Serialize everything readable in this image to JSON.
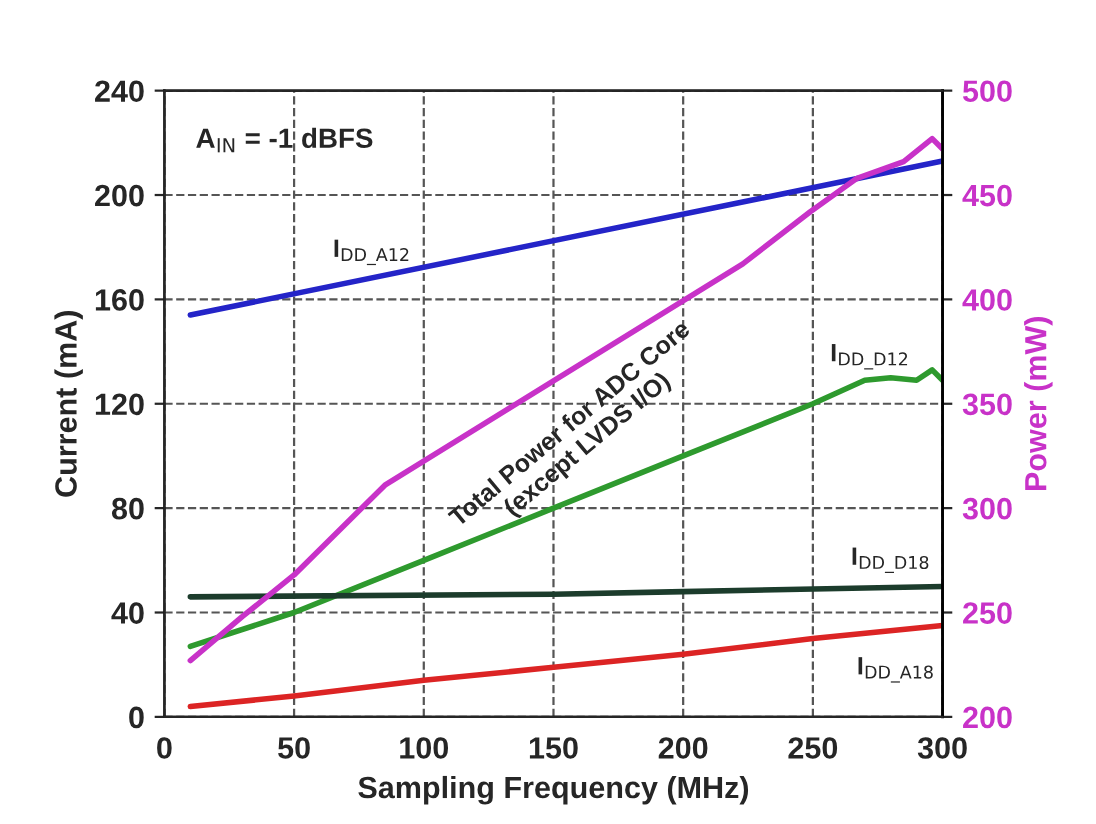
{
  "chart_data": {
    "type": "line",
    "xlabel": "Sampling Frequency (MHz)",
    "ylabel": "Current (mA)",
    "y2label": "Power (mW)",
    "annotations": [
      "A$_{IN}$ = -1 dBFS"
    ],
    "xlim": [
      0,
      300
    ],
    "xticks": [
      0,
      50,
      100,
      150,
      200,
      250,
      300
    ],
    "ylim": [
      0,
      240
    ],
    "yticks": [
      0,
      40,
      80,
      120,
      160,
      200,
      240
    ],
    "y2lim": [
      200,
      500
    ],
    "y2ticks": [
      200,
      250,
      300,
      350,
      400,
      450,
      500
    ],
    "grid": true,
    "legend": false,
    "line_style": "solid",
    "marker": "none",
    "series": [
      {
        "name": "I$_{DD_A12}$",
        "color": "#2424c8",
        "x": [
          10,
          300
        ],
        "values": [
          154,
          213
        ]
      },
      {
        "name": "Total Power for ADC Core\n(except LVDS I/O)",
        "color": "#c832c8",
        "axis": "y2",
        "x": [
          10,
          30,
          50,
          85,
          150,
          223,
          249,
          267,
          285,
          296,
          300
        ],
        "values": [
          227,
          248,
          268,
          311,
          361,
          417,
          442,
          458,
          466,
          477,
          472
        ]
      },
      {
        "name": "I$_{DD_D12}$",
        "color": "#2e9a2e",
        "x": [
          10,
          50,
          100,
          150,
          200,
          250,
          270,
          280,
          290,
          296,
          300
        ],
        "values": [
          27,
          40,
          60,
          80,
          100,
          120,
          129,
          130,
          129,
          133,
          129
        ]
      },
      {
        "name": "I$_{DD_D18}$",
        "color": "#1c3c2c",
        "x": [
          10,
          150,
          200,
          300
        ],
        "values": [
          46,
          47,
          48,
          50
        ]
      },
      {
        "name": "I$_{DD_A18}$",
        "color": "#dc2424",
        "x": [
          10,
          50,
          100,
          150,
          200,
          250,
          300
        ],
        "values": [
          4,
          8,
          14,
          19,
          24,
          30,
          35
        ]
      }
    ]
  }
}
